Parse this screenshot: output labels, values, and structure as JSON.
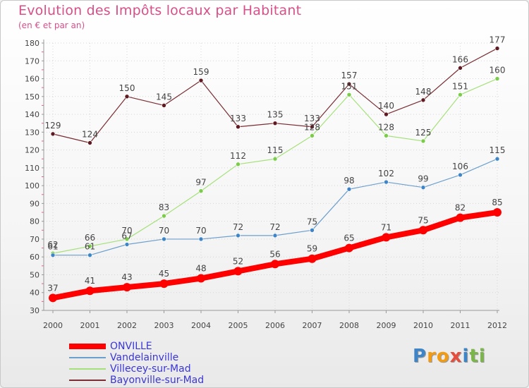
{
  "chart_data": {
    "type": "line",
    "title": "Evolution des Impôts locaux par Habitant",
    "subtitle": "(en € et par an)",
    "categories": [
      "2000",
      "2001",
      "2002",
      "2003",
      "2004",
      "2005",
      "2006",
      "2007",
      "2008",
      "2009",
      "2010",
      "2011",
      "2012"
    ],
    "ylim": [
      30,
      180
    ],
    "yticks": [
      30,
      40,
      50,
      60,
      70,
      80,
      90,
      100,
      110,
      120,
      130,
      140,
      150,
      160,
      170,
      180
    ],
    "grid": true,
    "legend_position": "bottom-left",
    "series": [
      {
        "name": "ONVILLE",
        "color": "#ff0000",
        "marker": "#ff0000",
        "width": 8,
        "radius": 6,
        "values": [
          37,
          41,
          43,
          45,
          48,
          52,
          56,
          59,
          65,
          71,
          75,
          82,
          85
        ]
      },
      {
        "name": "Vandelainville",
        "color": "#6d9fcd",
        "marker": "#3d85c6",
        "width": 1.2,
        "radius": 3,
        "values": [
          61,
          61,
          67,
          70,
          70,
          72,
          72,
          75,
          98,
          102,
          99,
          106,
          115
        ]
      },
      {
        "name": "Villecey-sur-Mad",
        "color": "#a5e07a",
        "marker": "#7acc4a",
        "width": 1.2,
        "radius": 3,
        "values": [
          62,
          66,
          70,
          83,
          97,
          112,
          115,
          128,
          151,
          128,
          125,
          151,
          160
        ]
      },
      {
        "name": "Bayonville-sur-Mad",
        "color": "#7a2d33",
        "marker": "#5e1a20",
        "width": 1.2,
        "radius": 3,
        "values": [
          129,
          124,
          150,
          145,
          159,
          133,
          135,
          133,
          157,
          140,
          148,
          166,
          177
        ]
      }
    ]
  },
  "logo": {
    "letters": [
      "P",
      "r",
      "o",
      "x",
      "i",
      "t",
      "i"
    ],
    "colors": [
      "#3d85c6",
      "#f39c12",
      "#f39c12",
      "#e74c3c",
      "#3d85c6",
      "#7ab648",
      "#7ab648"
    ]
  }
}
